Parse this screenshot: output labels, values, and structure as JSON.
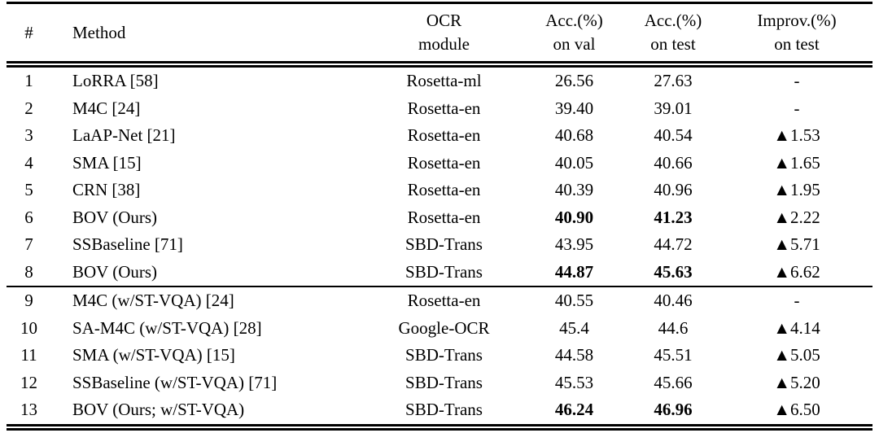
{
  "table": {
    "columns": [
      {
        "id": "num",
        "line1": "#",
        "line2": ""
      },
      {
        "id": "method",
        "line1": "Method",
        "line2": ""
      },
      {
        "id": "ocr",
        "line1": "OCR",
        "line2": "module"
      },
      {
        "id": "val",
        "line1": "Acc.(%)",
        "line2": "on val"
      },
      {
        "id": "test",
        "line1": "Acc.(%)",
        "line2": "on test"
      },
      {
        "id": "improv",
        "line1": "Improv.(%)",
        "line2": "on test"
      }
    ],
    "groups": [
      {
        "rows": [
          {
            "num": "1",
            "method": "LoRRA [58]",
            "ocr": "Rosetta-ml",
            "val": "26.56",
            "test": "27.63",
            "improv": "-",
            "bold": false
          },
          {
            "num": "2",
            "method": "M4C [24]",
            "ocr": "Rosetta-en",
            "val": "39.40",
            "test": "39.01",
            "improv": "-",
            "bold": false
          },
          {
            "num": "3",
            "method": "LaAP-Net [21]",
            "ocr": "Rosetta-en",
            "val": "40.68",
            "test": "40.54",
            "improv": "▲1.53",
            "bold": false
          },
          {
            "num": "4",
            "method": "SMA [15]",
            "ocr": "Rosetta-en",
            "val": "40.05",
            "test": "40.66",
            "improv": "▲1.65",
            "bold": false
          },
          {
            "num": "5",
            "method": "CRN [38]",
            "ocr": "Rosetta-en",
            "val": "40.39",
            "test": "40.96",
            "improv": "▲1.95",
            "bold": false
          },
          {
            "num": "6",
            "method": "BOV (Ours)",
            "ocr": "Rosetta-en",
            "val": "40.90",
            "test": "41.23",
            "improv": "▲2.22",
            "bold": true
          },
          {
            "num": "7",
            "method": "SSBaseline [71]",
            "ocr": "SBD-Trans",
            "val": "43.95",
            "test": "44.72",
            "improv": "▲5.71",
            "bold": false
          },
          {
            "num": "8",
            "method": "BOV (Ours)",
            "ocr": "SBD-Trans",
            "val": "44.87",
            "test": "45.63",
            "improv": "▲6.62",
            "bold": true
          }
        ]
      },
      {
        "rows": [
          {
            "num": "9",
            "method": "M4C (w/ST-VQA) [24]",
            "ocr": "Rosetta-en",
            "val": "40.55",
            "test": "40.46",
            "improv": "-",
            "bold": false
          },
          {
            "num": "10",
            "method": "SA-M4C (w/ST-VQA) [28]",
            "ocr": "Google-OCR",
            "val": "45.4",
            "test": "44.6",
            "improv": "▲4.14",
            "bold": false
          },
          {
            "num": "11",
            "method": "SMA (w/ST-VQA) [15]",
            "ocr": "SBD-Trans",
            "val": "44.58",
            "test": "45.51",
            "improv": "▲5.05",
            "bold": false
          },
          {
            "num": "12",
            "method": "SSBaseline (w/ST-VQA) [71]",
            "ocr": "SBD-Trans",
            "val": "45.53",
            "test": "45.66",
            "improv": "▲5.20",
            "bold": false
          },
          {
            "num": "13",
            "method": "BOV (Ours; w/ST-VQA)",
            "ocr": "SBD-Trans",
            "val": "46.24",
            "test": "46.96",
            "improv": "▲6.50",
            "bold": true
          }
        ]
      }
    ]
  }
}
